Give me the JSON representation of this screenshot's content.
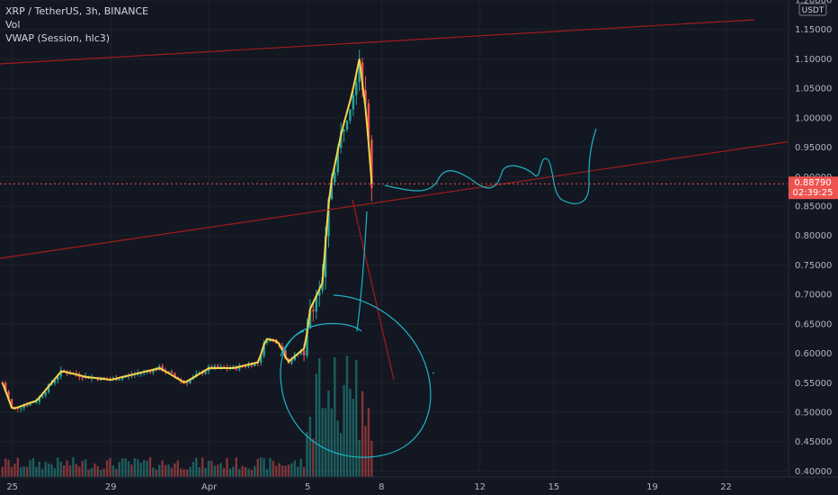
{
  "legend": {
    "symbol_line": "XRP / TetherUS, 3h, BINANCE",
    "vol_line": "Vol",
    "vwap_line": "VWAP (Session, hlc3)"
  },
  "chart_data": {
    "type": "candlestick",
    "title": "XRP / TetherUS, 3h, BINANCE",
    "currency": "USDT",
    "ylim": [
      0.39,
      1.2
    ],
    "y_ticks": [
      "1.20000",
      "1.15000",
      "1.10000",
      "1.05000",
      "1.00000",
      "0.95000",
      "0.90000",
      "0.85000",
      "0.80000",
      "0.75000",
      "0.70000",
      "0.65000",
      "0.60000",
      "0.55000",
      "0.50000",
      "0.45000",
      "0.40000"
    ],
    "y_tick_values": [
      1.2,
      1.15,
      1.1,
      1.05,
      1.0,
      0.95,
      0.9,
      0.85,
      0.8,
      0.75,
      0.7,
      0.65,
      0.6,
      0.55,
      0.5,
      0.45,
      0.4
    ],
    "x_labels": [
      "25",
      "29",
      "Apr",
      "5",
      "8",
      "12",
      "15",
      "19",
      "22"
    ],
    "x_label_days": [
      -7,
      -3,
      1,
      5,
      8,
      12,
      15,
      19,
      22
    ],
    "x_range_days": [
      -7.5,
      24.5
    ],
    "last_price": "0.88790",
    "last_price_value": 0.8879,
    "countdown": "02:39:25",
    "key_closes": [
      {
        "day": -7.4,
        "close": 0.55
      },
      {
        "day": -7.0,
        "close": 0.505
      },
      {
        "day": -6.0,
        "close": 0.52
      },
      {
        "day": -5.0,
        "close": 0.57
      },
      {
        "day": -4.0,
        "close": 0.56
      },
      {
        "day": -3.0,
        "close": 0.555
      },
      {
        "day": -2.0,
        "close": 0.565
      },
      {
        "day": -1.0,
        "close": 0.575
      },
      {
        "day": 0.0,
        "close": 0.55
      },
      {
        "day": 1.0,
        "close": 0.575
      },
      {
        "day": 2.0,
        "close": 0.575
      },
      {
        "day": 3.0,
        "close": 0.585
      },
      {
        "day": 3.3,
        "close": 0.625
      },
      {
        "day": 3.8,
        "close": 0.62
      },
      {
        "day": 4.2,
        "close": 0.585
      },
      {
        "day": 4.9,
        "close": 0.61
      },
      {
        "day": 5.1,
        "close": 0.675
      },
      {
        "day": 5.6,
        "close": 0.72
      },
      {
        "day": 5.9,
        "close": 0.88
      },
      {
        "day": 6.4,
        "close": 0.98
      },
      {
        "day": 6.8,
        "close": 1.04
      },
      {
        "day": 7.1,
        "close": 1.1
      },
      {
        "day": 7.4,
        "close": 1.0
      },
      {
        "day": 7.6,
        "close": 0.888
      }
    ],
    "series": [
      {
        "name": "Vol",
        "type": "bar"
      },
      {
        "name": "VWAP (Session, hlc3)",
        "type": "line",
        "color": "#f7d54a"
      }
    ],
    "colors": {
      "up": "#26a69a",
      "down": "#ef5350",
      "vwap": "#f7d54a",
      "trendline": "#a31c1c",
      "drawing": "#1fb3c4",
      "price_badge": "#ef5350",
      "background": "#131722"
    }
  }
}
